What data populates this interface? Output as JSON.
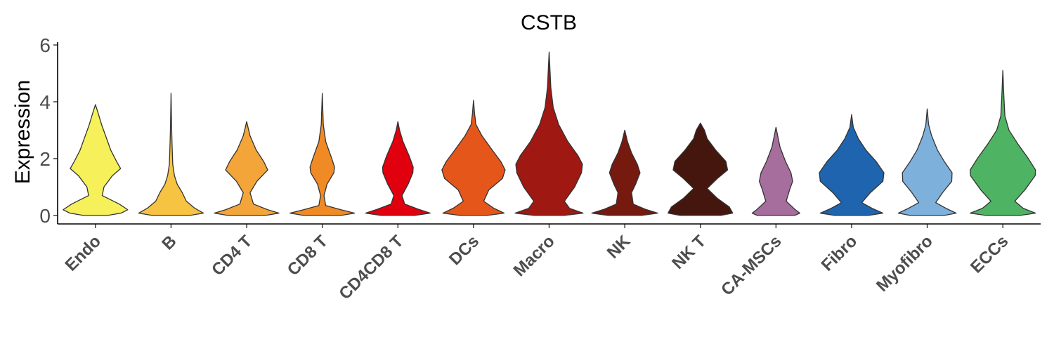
{
  "chart_data": {
    "type": "violin",
    "title": "CSTB",
    "xlabel": "",
    "ylabel": "Expression",
    "ylim": [
      -0.3,
      6.1
    ],
    "yticks": [
      0,
      2,
      4,
      6
    ],
    "grid": false,
    "legend": "none",
    "categories": [
      "Endo",
      "B",
      "CD4 T",
      "CD8 T",
      "CD4CD8 T",
      "DCs",
      "Macro",
      "NK",
      "NK T",
      "CA-MSCs",
      "Fibro",
      "Myofibro",
      "ECCs"
    ],
    "colors": [
      "#f6f05a",
      "#f7c342",
      "#f3a53a",
      "#f08a25",
      "#e0000e",
      "#e5561b",
      "#a01812",
      "#761a10",
      "#44160e",
      "#a56e9d",
      "#1f64ae",
      "#7eb0dc",
      "#4fb364"
    ],
    "max_values": [
      3.9,
      4.3,
      3.3,
      4.3,
      3.3,
      4.05,
      5.75,
      3.0,
      3.25,
      3.1,
      3.55,
      3.75,
      5.1
    ],
    "density_profiles": [
      [
        [
          0,
          0.35
        ],
        [
          0.08,
          0.75
        ],
        [
          0.2,
          0.95
        ],
        [
          0.4,
          0.7
        ],
        [
          0.7,
          0.2
        ],
        [
          1.0,
          0.25
        ],
        [
          1.4,
          0.5
        ],
        [
          1.65,
          0.74
        ],
        [
          1.9,
          0.62
        ],
        [
          2.3,
          0.45
        ],
        [
          2.8,
          0.3
        ],
        [
          3.2,
          0.18
        ],
        [
          3.6,
          0.08
        ],
        [
          3.9,
          0
        ]
      ],
      [
        [
          0,
          0.55
        ],
        [
          0.08,
          0.95
        ],
        [
          0.25,
          0.7
        ],
        [
          0.5,
          0.45
        ],
        [
          0.8,
          0.33
        ],
        [
          1.1,
          0.18
        ],
        [
          1.4,
          0.1
        ],
        [
          1.8,
          0.05
        ],
        [
          2.5,
          0.03
        ],
        [
          3.2,
          0.015
        ],
        [
          4.3,
          0
        ]
      ],
      [
        [
          0,
          0.55
        ],
        [
          0.08,
          0.95
        ],
        [
          0.2,
          0.62
        ],
        [
          0.4,
          0.2
        ],
        [
          0.8,
          0.1
        ],
        [
          1.2,
          0.3
        ],
        [
          1.6,
          0.62
        ],
        [
          1.9,
          0.5
        ],
        [
          2.3,
          0.28
        ],
        [
          2.8,
          0.1
        ],
        [
          3.3,
          0
        ]
      ],
      [
        [
          0,
          0.55
        ],
        [
          0.08,
          0.95
        ],
        [
          0.2,
          0.55
        ],
        [
          0.35,
          0.1
        ],
        [
          0.7,
          0.05
        ],
        [
          1.1,
          0.14
        ],
        [
          1.5,
          0.34
        ],
        [
          1.7,
          0.36
        ],
        [
          2.0,
          0.28
        ],
        [
          2.6,
          0.1
        ],
        [
          3.2,
          0.03
        ],
        [
          4.3,
          0
        ]
      ],
      [
        [
          0,
          0.5
        ],
        [
          0.08,
          0.95
        ],
        [
          0.22,
          0.6
        ],
        [
          0.4,
          0.2
        ],
        [
          0.7,
          0.12
        ],
        [
          1.1,
          0.3
        ],
        [
          1.5,
          0.44
        ],
        [
          1.7,
          0.45
        ],
        [
          2.1,
          0.33
        ],
        [
          2.6,
          0.15
        ],
        [
          3.0,
          0.05
        ],
        [
          3.3,
          0
        ]
      ],
      [
        [
          0,
          0.4
        ],
        [
          0.08,
          0.9
        ],
        [
          0.25,
          0.6
        ],
        [
          0.5,
          0.3
        ],
        [
          0.9,
          0.45
        ],
        [
          1.3,
          0.85
        ],
        [
          1.6,
          0.93
        ],
        [
          1.9,
          0.8
        ],
        [
          2.3,
          0.55
        ],
        [
          2.8,
          0.25
        ],
        [
          3.2,
          0.07
        ],
        [
          3.6,
          0.03
        ],
        [
          4.05,
          0
        ]
      ],
      [
        [
          0,
          0.45
        ],
        [
          0.08,
          1.0
        ],
        [
          0.25,
          0.6
        ],
        [
          0.5,
          0.45
        ],
        [
          1.0,
          0.75
        ],
        [
          1.5,
          0.95
        ],
        [
          1.8,
          0.98
        ],
        [
          2.1,
          0.85
        ],
        [
          2.6,
          0.55
        ],
        [
          3.2,
          0.28
        ],
        [
          3.8,
          0.12
        ],
        [
          4.5,
          0.05
        ],
        [
          5.75,
          0
        ]
      ],
      [
        [
          0,
          0.5
        ],
        [
          0.08,
          0.97
        ],
        [
          0.22,
          0.6
        ],
        [
          0.4,
          0.25
        ],
        [
          0.8,
          0.2
        ],
        [
          1.1,
          0.32
        ],
        [
          1.5,
          0.45
        ],
        [
          1.8,
          0.37
        ],
        [
          2.2,
          0.2
        ],
        [
          2.6,
          0.08
        ],
        [
          3.0,
          0
        ]
      ],
      [
        [
          0,
          0.6
        ],
        [
          0.08,
          0.95
        ],
        [
          0.3,
          0.85
        ],
        [
          0.6,
          0.5
        ],
        [
          0.95,
          0.2
        ],
        [
          1.3,
          0.5
        ],
        [
          1.6,
          0.8
        ],
        [
          1.9,
          0.75
        ],
        [
          2.3,
          0.45
        ],
        [
          2.7,
          0.2
        ],
        [
          3.0,
          0.12
        ],
        [
          3.25,
          0
        ]
      ],
      [
        [
          0,
          0.55
        ],
        [
          0.08,
          0.7
        ],
        [
          0.22,
          0.55
        ],
        [
          0.5,
          0.3
        ],
        [
          0.9,
          0.4
        ],
        [
          1.2,
          0.49
        ],
        [
          1.5,
          0.44
        ],
        [
          1.9,
          0.28
        ],
        [
          2.4,
          0.12
        ],
        [
          2.8,
          0.05
        ],
        [
          3.1,
          0
        ]
      ],
      [
        [
          0,
          0.5
        ],
        [
          0.08,
          0.92
        ],
        [
          0.25,
          0.6
        ],
        [
          0.45,
          0.3
        ],
        [
          0.8,
          0.55
        ],
        [
          1.2,
          0.92
        ],
        [
          1.5,
          0.95
        ],
        [
          1.9,
          0.72
        ],
        [
          2.3,
          0.42
        ],
        [
          2.7,
          0.2
        ],
        [
          3.1,
          0.05
        ],
        [
          3.55,
          0
        ]
      ],
      [
        [
          0,
          0.5
        ],
        [
          0.08,
          0.85
        ],
        [
          0.25,
          0.55
        ],
        [
          0.45,
          0.25
        ],
        [
          0.8,
          0.45
        ],
        [
          1.2,
          0.72
        ],
        [
          1.5,
          0.73
        ],
        [
          1.9,
          0.5
        ],
        [
          2.3,
          0.3
        ],
        [
          2.8,
          0.13
        ],
        [
          3.2,
          0.04
        ],
        [
          3.75,
          0
        ]
      ],
      [
        [
          0,
          0.5
        ],
        [
          0.08,
          0.96
        ],
        [
          0.25,
          0.6
        ],
        [
          0.5,
          0.35
        ],
        [
          0.9,
          0.65
        ],
        [
          1.4,
          0.95
        ],
        [
          1.6,
          0.96
        ],
        [
          2.0,
          0.75
        ],
        [
          2.5,
          0.45
        ],
        [
          3.0,
          0.18
        ],
        [
          3.5,
          0.06
        ],
        [
          4.2,
          0.03
        ],
        [
          5.1,
          0
        ]
      ]
    ]
  }
}
